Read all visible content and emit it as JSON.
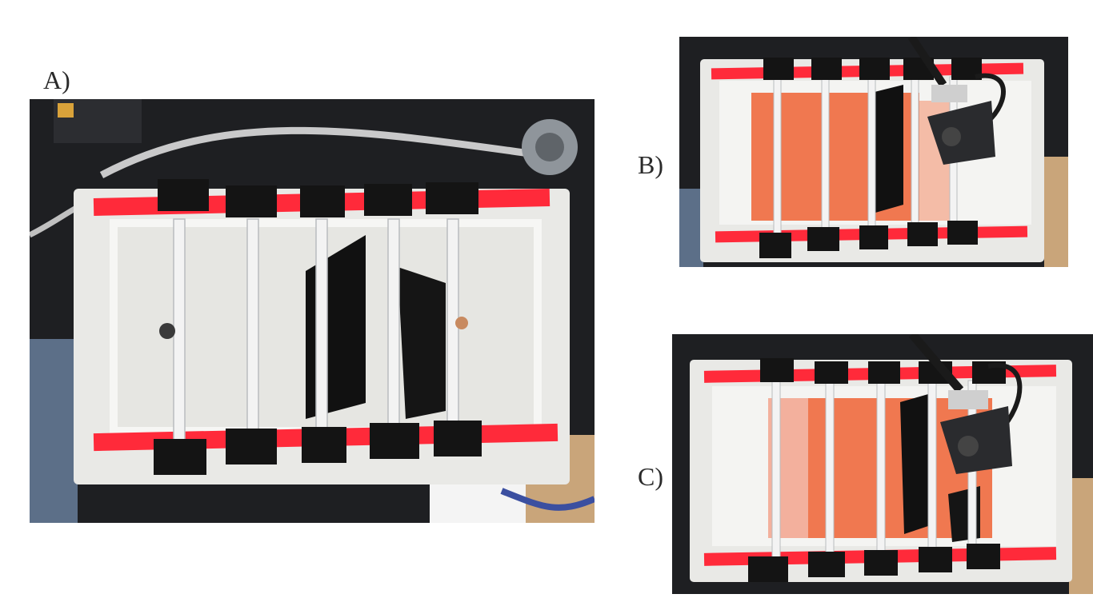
{
  "panels": [
    {
      "id": "A",
      "label": "A)",
      "dye": "none",
      "pump_visible": false,
      "compartments": 6
    },
    {
      "id": "B",
      "label": "B)",
      "dye": "partial",
      "pump_visible": true,
      "compartments": 6
    },
    {
      "id": "C",
      "label": "C)",
      "dye": "spread",
      "pump_visible": true,
      "compartments": 6
    }
  ],
  "colors": {
    "background": "#ffffff",
    "tank": "#eeeeec",
    "red_tape": "#ff2a3a",
    "black_tape": "#141414",
    "dye": "#f06a3e",
    "desk": "#1e1f22"
  },
  "icons": [
    "acrylic-tank",
    "divider-plate",
    "black-tape",
    "red-tape",
    "pump",
    "tubing",
    "wash-bottle"
  ]
}
